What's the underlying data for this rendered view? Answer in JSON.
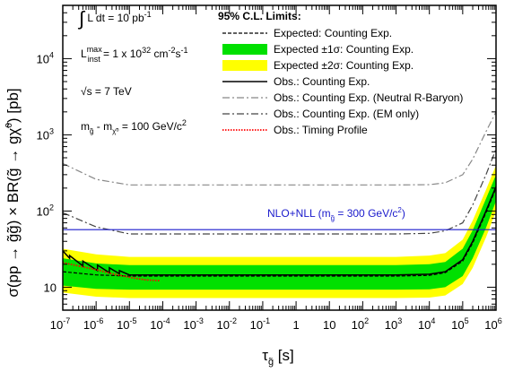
{
  "chart_data": {
    "type": "line",
    "xlabel": "τ_g̃ [s]",
    "ylabel": "σ(pp → g̃g̃) × BR(g̃ → gχ̃⁰) [pb]",
    "x_scale": "log",
    "y_scale": "log",
    "xlim": [
      1e-07,
      1000000.0
    ],
    "ylim": [
      5,
      50000
    ],
    "x_tick_labels": [
      {
        "v": 1e-07,
        "base": "10",
        "exp": "-7"
      },
      {
        "v": 1e-06,
        "base": "10",
        "exp": "-6"
      },
      {
        "v": 1e-05,
        "base": "10",
        "exp": "-5"
      },
      {
        "v": 0.0001,
        "base": "10",
        "exp": "-4"
      },
      {
        "v": 0.001,
        "base": "10",
        "exp": "-3"
      },
      {
        "v": 0.01,
        "base": "10",
        "exp": "-2"
      },
      {
        "v": 0.1,
        "base": "10",
        "exp": "-1"
      },
      {
        "v": 1,
        "base": "1",
        "exp": ""
      },
      {
        "v": 10,
        "base": "10",
        "exp": ""
      },
      {
        "v": 100,
        "base": "10",
        "exp": "2"
      },
      {
        "v": 1000,
        "base": "10",
        "exp": "3"
      },
      {
        "v": 10000,
        "base": "10",
        "exp": "4"
      },
      {
        "v": 100000,
        "base": "10",
        "exp": "5"
      },
      {
        "v": 1000000,
        "base": "10",
        "exp": "6"
      }
    ],
    "y_tick_labels": [
      {
        "v": 10,
        "base": "10",
        "exp": ""
      },
      {
        "v": 100,
        "base": "10",
        "exp": "2"
      },
      {
        "v": 1000,
        "base": "10",
        "exp": "3"
      },
      {
        "v": 10000,
        "base": "10",
        "exp": "4"
      }
    ],
    "annotations": {
      "lumi": {
        "pre": "∫ L dt = 10 pb",
        "sup": "-1"
      },
      "inst": {
        "pre": "L",
        "sup": "max",
        "sub": "inst",
        "post": " = 1 x 10",
        "post_sup": "32",
        "post2": " cm",
        "post2_sup": "-2",
        "post3": "s",
        "post3_sup": "-1"
      },
      "energy": "√s = 7 TeV",
      "mass_diff": {
        "pre": "m",
        "sub1": "g̃",
        "mid": " - m",
        "sub2": "χ̃⁰",
        "post": " = 100 GeV/c",
        "post_sup": "2"
      }
    },
    "legend": {
      "title": "95% C.L. Limits:",
      "entries": [
        {
          "label": "Expected: Counting Exp.",
          "style": "dashed"
        },
        {
          "label": "Expected ±1σ: Counting Exp.",
          "style": "band1"
        },
        {
          "label": "Expected ±2σ: Counting Exp.",
          "style": "band2"
        },
        {
          "label": "Obs.: Counting Exp.",
          "style": "solid"
        },
        {
          "label": "Obs.: Counting Exp. (Neutral R-Baryon)",
          "style": "dashdot-gray"
        },
        {
          "label": "Obs.: Counting Exp. (EM only)",
          "style": "dashdot-dark"
        },
        {
          "label": "Obs.: Timing Profile",
          "style": "dotted-red"
        }
      ]
    },
    "nlo_line": {
      "label": "NLO+NLL (m",
      "label_sub": "g̃",
      "label_post": " = 300 GeV/c",
      "label_sup": "2",
      "label_close": ")",
      "y": 57,
      "color": "#1a1acc"
    },
    "colors": {
      "band2": "#ffff00",
      "band1": "#00e000",
      "expected": "#000000",
      "observed": "#000000",
      "neutral": "#888888",
      "em": "#444444",
      "timing": "#ff0000",
      "nlo": "#1a1acc"
    },
    "series": [
      {
        "name": "Expected ±2σ: Counting Exp.",
        "kind": "band",
        "x": [
          1e-07,
          1e-06,
          1e-05,
          0.0001,
          0.001,
          0.01,
          0.1,
          1,
          10,
          100,
          1000,
          10000,
          30000,
          100000,
          200000,
          500000,
          1000000
        ],
        "lower": [
          8.5,
          7.5,
          7.2,
          7.2,
          7.2,
          7.2,
          7.2,
          7.2,
          7.2,
          7.2,
          7.2,
          7.3,
          7.8,
          11,
          18,
          45,
          100
        ],
        "upper": [
          32,
          27,
          25,
          25,
          25,
          25,
          25,
          25,
          25,
          25,
          25,
          26,
          28,
          42,
          75,
          190,
          400
        ]
      },
      {
        "name": "Expected ±1σ: Counting Exp.",
        "kind": "band",
        "x": [
          1e-07,
          1e-06,
          1e-05,
          0.0001,
          0.001,
          0.01,
          0.1,
          1,
          10,
          100,
          1000,
          10000,
          30000,
          100000,
          200000,
          500000,
          1000000
        ],
        "lower": [
          10.5,
          9.5,
          9.3,
          9.3,
          9.3,
          9.3,
          9.3,
          9.3,
          9.3,
          9.3,
          9.3,
          9.4,
          10,
          14,
          24,
          60,
          135
        ],
        "upper": [
          24,
          20.5,
          19.5,
          19.5,
          19.5,
          19.5,
          19.5,
          19.5,
          19.5,
          19.5,
          19.5,
          20,
          21.5,
          32,
          56,
          145,
          300
        ]
      },
      {
        "name": "Expected: Counting Exp.",
        "kind": "dashed",
        "x": [
          1e-07,
          1e-06,
          1e-05,
          0.0001,
          0.001,
          0.01,
          0.1,
          1,
          10,
          100,
          1000,
          10000,
          30000,
          100000,
          200000,
          500000,
          1000000
        ],
        "y": [
          16,
          14.5,
          14,
          14,
          14,
          14,
          14,
          14,
          14,
          14,
          14,
          14.3,
          15.5,
          22,
          38,
          95,
          200
        ]
      },
      {
        "name": "Obs.: Counting Exp.",
        "kind": "solid",
        "x": [
          1e-07,
          1.6e-07,
          1.6e-07,
          4e-07,
          4e-07,
          1.1e-06,
          1.1e-06,
          2.5e-06,
          2.5e-06,
          5e-06,
          5e-06,
          1e-05,
          0.0001,
          0.001,
          0.01,
          0.1,
          1,
          10,
          100,
          1000,
          10000,
          30000,
          100000,
          200000,
          500000,
          1000000
        ],
        "y": [
          30,
          24,
          26,
          19,
          22,
          16.5,
          19.5,
          15.5,
          18,
          15,
          16.5,
          14.5,
          14.5,
          14.5,
          14.5,
          14.5,
          14.5,
          14.5,
          14.5,
          14.5,
          14.8,
          16,
          23,
          40,
          100,
          210
        ]
      },
      {
        "name": "Obs.: Counting Exp. (Neutral R-Baryon)",
        "kind": "dashdot",
        "x": [
          1e-07,
          1e-06,
          1e-05,
          0.0001,
          0.001,
          0.01,
          0.1,
          1,
          10,
          100,
          1000,
          10000,
          30000,
          100000,
          200000,
          500000,
          1000000
        ],
        "y": [
          420,
          260,
          220,
          220,
          220,
          220,
          220,
          220,
          220,
          220,
          220,
          222,
          235,
          300,
          480,
          1100,
          2000
        ]
      },
      {
        "name": "Obs.: Counting Exp. (EM only)",
        "kind": "dashdot",
        "x": [
          1e-07,
          1e-06,
          1e-05,
          0.0001,
          0.001,
          0.01,
          0.1,
          1,
          10,
          100,
          1000,
          10000,
          30000,
          100000,
          200000,
          500000,
          1000000
        ],
        "y": [
          95,
          62,
          50,
          50,
          50,
          50,
          50,
          50,
          50,
          50,
          50,
          51,
          55,
          70,
          120,
          300,
          650
        ]
      },
      {
        "name": "Obs.: Timing Profile",
        "kind": "dotted",
        "x": [
          1e-07,
          3e-07,
          1e-06,
          3e-06,
          1e-05,
          3e-05,
          8e-05
        ],
        "y": [
          21,
          19,
          17,
          15,
          13.5,
          12.5,
          12.2
        ]
      }
    ]
  }
}
